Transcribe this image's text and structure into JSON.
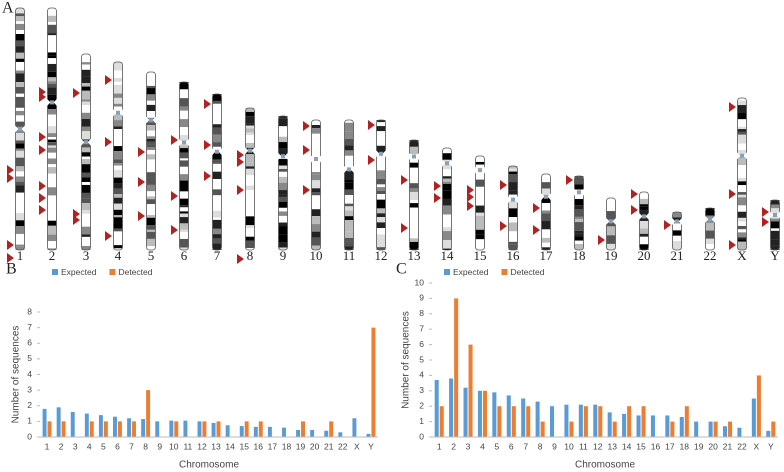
{
  "panel_a": {
    "label": "A",
    "chromosomes": [
      "1",
      "2",
      "3",
      "4",
      "5",
      "6",
      "7",
      "8",
      "9",
      "10",
      "11",
      "12",
      "13",
      "14",
      "15",
      "16",
      "17",
      "18",
      "19",
      "20",
      "21",
      "22",
      "X",
      "Y"
    ]
  },
  "chart_data": [
    {
      "type": "bar",
      "panel_label": "B",
      "y_label": "Number of sequences",
      "x_label": "Chromosome",
      "categories": [
        "1",
        "2",
        "3",
        "4",
        "5",
        "6",
        "7",
        "8",
        "9",
        "10",
        "11",
        "12",
        "13",
        "14",
        "15",
        "16",
        "17",
        "18",
        "19",
        "20",
        "21",
        "22",
        "X",
        "Y"
      ],
      "series": [
        {
          "name": "Expected",
          "color": "#5b9bd5",
          "values": [
            1.8,
            1.9,
            1.6,
            1.5,
            1.4,
            1.3,
            1.2,
            1.15,
            1.0,
            1.05,
            1.05,
            1.0,
            0.9,
            0.75,
            0.7,
            0.65,
            0.65,
            0.6,
            0.45,
            0.45,
            0.4,
            0.3,
            1.2,
            0.2
          ]
        },
        {
          "name": "Detected",
          "color": "#ed7d31",
          "values": [
            1,
            1,
            0,
            1,
            1,
            1,
            1,
            3,
            0,
            1,
            0,
            1,
            1,
            0,
            1,
            1,
            0,
            0,
            1,
            0,
            1,
            0,
            0,
            7
          ]
        }
      ],
      "ylim": [
        0,
        8
      ],
      "yticks": [
        0,
        1,
        2,
        3,
        4,
        5,
        6,
        7,
        8
      ],
      "legend": "top-left"
    },
    {
      "type": "bar",
      "panel_label": "C",
      "y_label": "Number of sequences",
      "x_label": "Chromosome",
      "categories": [
        "1",
        "2",
        "3",
        "4",
        "5",
        "6",
        "7",
        "8",
        "9",
        "10",
        "11",
        "12",
        "13",
        "14",
        "15",
        "16",
        "17",
        "18",
        "19",
        "20",
        "21",
        "22",
        "X",
        "Y"
      ],
      "series": [
        {
          "name": "Expected",
          "color": "#5b9bd5",
          "values": [
            3.7,
            3.8,
            3.2,
            3.0,
            2.9,
            2.7,
            2.5,
            2.3,
            2.0,
            2.1,
            2.1,
            2.1,
            1.6,
            1.5,
            1.4,
            1.4,
            1.4,
            1.3,
            1.0,
            1.0,
            0.7,
            0.6,
            2.5,
            0.4
          ]
        },
        {
          "name": "Detected",
          "color": "#ed7d31",
          "values": [
            2,
            9,
            6,
            3,
            2,
            2,
            2,
            1,
            0,
            1,
            2,
            2,
            1,
            2,
            2,
            0,
            1,
            2,
            0,
            1,
            1,
            0,
            4,
            1
          ]
        }
      ],
      "ylim": [
        0,
        10
      ],
      "yticks": [
        0,
        1,
        2,
        3,
        4,
        5,
        6,
        7,
        8,
        9,
        10
      ],
      "legend": "top-left"
    }
  ]
}
